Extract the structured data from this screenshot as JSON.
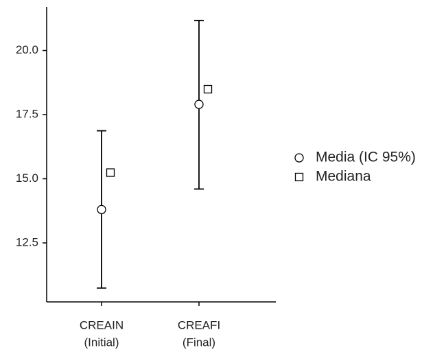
{
  "chart_data": {
    "type": "errorbar",
    "categories": [
      [
        "CREAIN",
        "(Initial)"
      ],
      [
        "CREAFI",
        "(Final)"
      ]
    ],
    "series": [
      {
        "name": "Media (IC 95%)",
        "marker": "circle",
        "color": "#000000",
        "values": [
          13.8,
          17.9
        ],
        "ci_low": [
          10.74,
          14.6
        ],
        "ci_high": [
          16.87,
          21.17
        ]
      },
      {
        "name": "Mediana",
        "marker": "square",
        "color": "#000000",
        "values": [
          15.24,
          18.49
        ]
      }
    ],
    "ylim": [
      10.2,
      21.7
    ],
    "yticks": [
      {
        "value": 12.5,
        "label": "12.5"
      },
      {
        "value": 15,
        "label": "15.0"
      },
      {
        "value": 17.5,
        "label": "17.5"
      },
      {
        "value": 20,
        "label": "20.0"
      }
    ],
    "grid": false,
    "legend": "right"
  }
}
